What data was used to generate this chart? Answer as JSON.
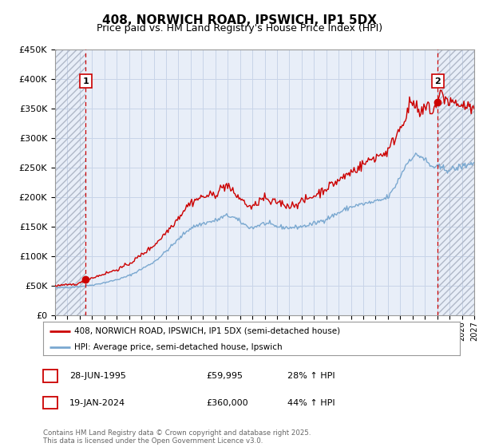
{
  "title": "408, NORWICH ROAD, IPSWICH, IP1 5DX",
  "subtitle": "Price paid vs. HM Land Registry's House Price Index (HPI)",
  "legend_line1": "408, NORWICH ROAD, IPSWICH, IP1 5DX (semi-detached house)",
  "legend_line2": "HPI: Average price, semi-detached house, Ipswich",
  "sale1_date": "28-JUN-1995",
  "sale1_price": "£59,995",
  "sale1_hpi": "28% ↑ HPI",
  "sale2_date": "19-JAN-2024",
  "sale2_price": "£360,000",
  "sale2_hpi": "44% ↑ HPI",
  "footer": "Contains HM Land Registry data © Crown copyright and database right 2025.\nThis data is licensed under the Open Government Licence v3.0.",
  "ylim": [
    0,
    450000
  ],
  "yticks": [
    0,
    50000,
    100000,
    150000,
    200000,
    250000,
    300000,
    350000,
    400000,
    450000
  ],
  "hatch_color": "#b0b8c8",
  "grid_color": "#c8d4e8",
  "plot_bg": "#e8eef8",
  "red_line_color": "#cc0000",
  "blue_line_color": "#7aa8d0",
  "dashed_red": "#cc0000",
  "sale1_x": 1995.49,
  "sale1_y": 59995,
  "sale2_x": 2024.05,
  "sale2_y": 360000,
  "xmin": 1993.0,
  "xmax": 2027.0
}
